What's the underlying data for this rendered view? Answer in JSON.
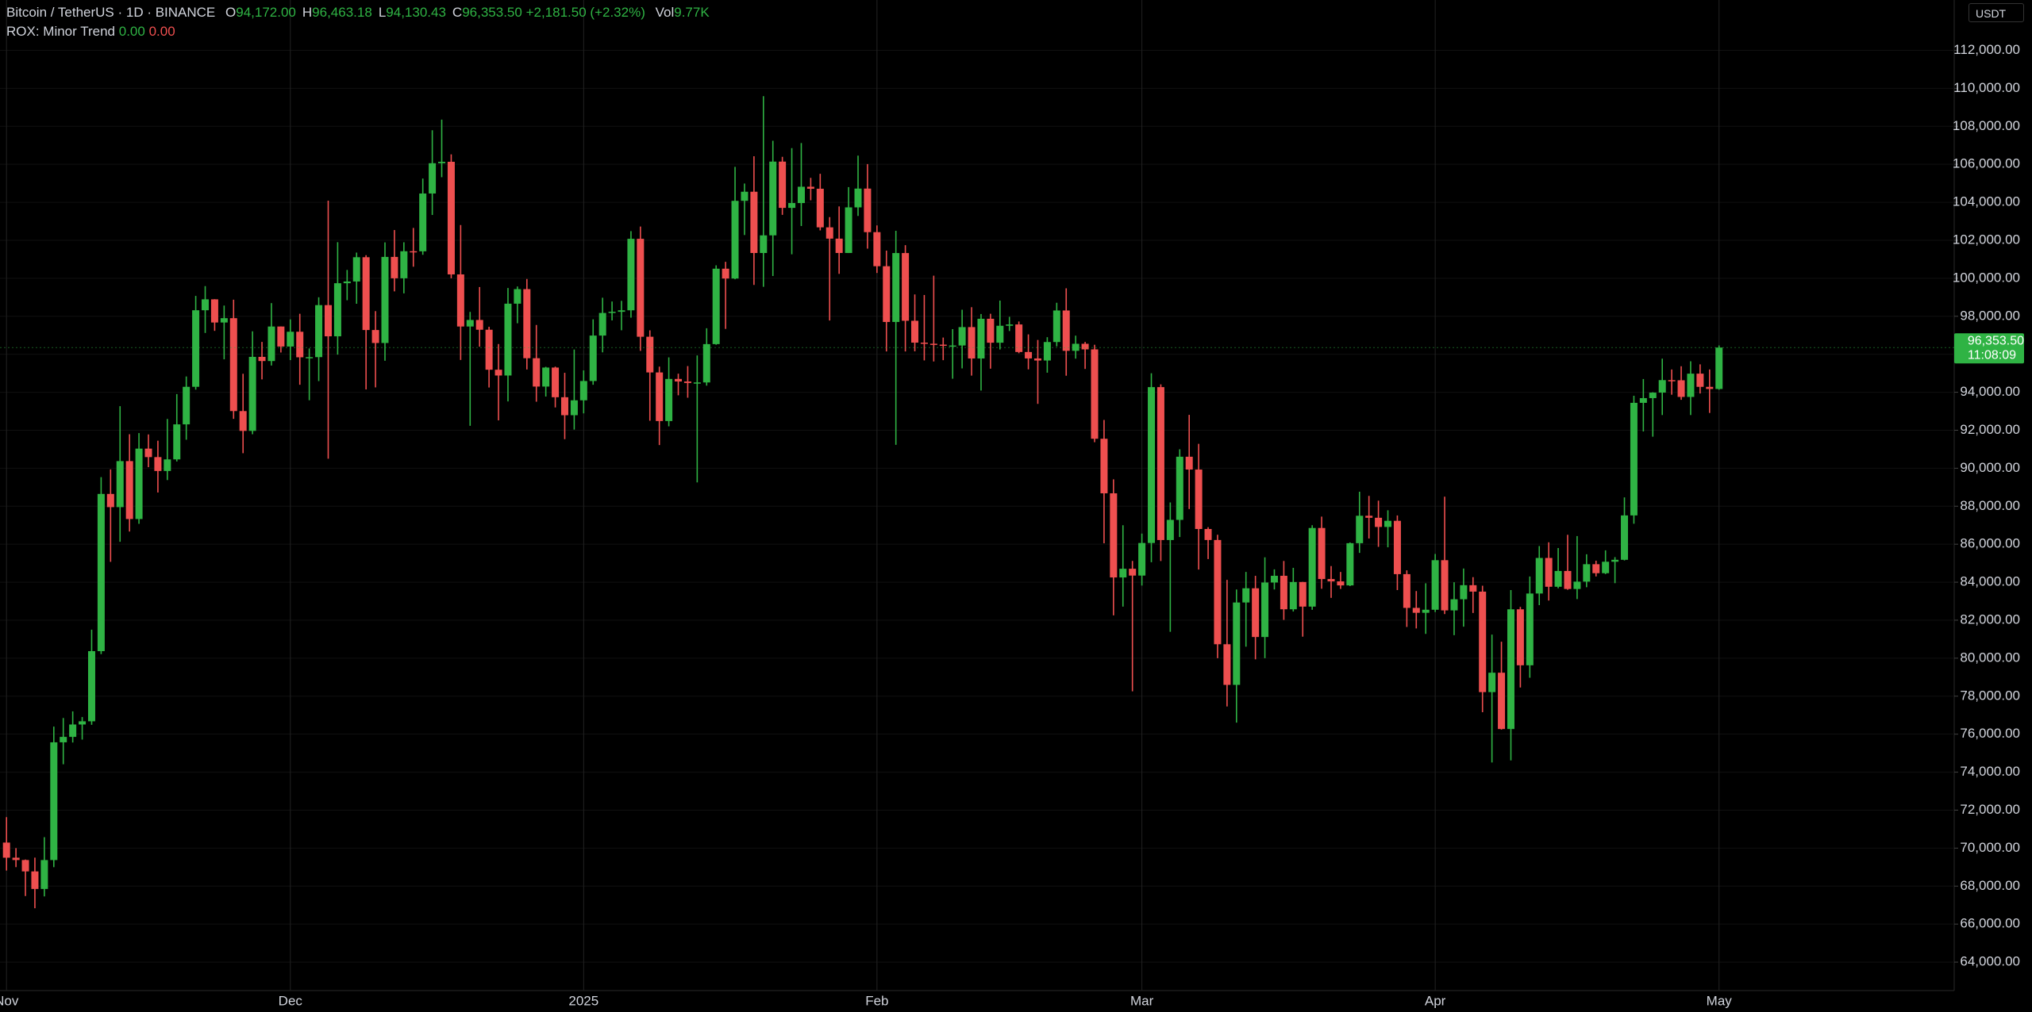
{
  "chart_data": {
    "type": "candlestick",
    "title": "Bitcoin / TetherUS · 1D · BINANCE",
    "header_fields": [
      {
        "key": "O",
        "value": "94,172.00"
      },
      {
        "key": "H",
        "value": "96,463.18"
      },
      {
        "key": "L",
        "value": "94,130.43"
      },
      {
        "key": "C",
        "value": "96,353.50"
      }
    ],
    "change": "+2,181.50 (+2.32%)",
    "volume": {
      "key": "Vol",
      "value": "9.77K"
    },
    "indicator": {
      "name": "ROX: Minor Trend",
      "values": [
        "0.00",
        "0.00"
      ]
    },
    "currency": "USDT",
    "last_price_label": "96,353.50",
    "countdown": "11:08:09",
    "up_color": "#2fb344",
    "down_color": "#ee4f4f",
    "grid": true,
    "categories": [
      "Nov",
      null,
      null,
      null,
      null,
      null,
      null,
      null,
      null,
      null,
      null,
      null,
      null,
      null,
      null,
      null,
      null,
      null,
      null,
      null,
      null,
      null,
      null,
      null,
      null,
      null,
      null,
      null,
      null,
      null,
      "Dec",
      null,
      null,
      null,
      null,
      null,
      null,
      null,
      null,
      null,
      null,
      null,
      null,
      null,
      null,
      null,
      null,
      null,
      null,
      null,
      null,
      null,
      null,
      null,
      null,
      null,
      null,
      null,
      null,
      null,
      null,
      "2025",
      null,
      null,
      null,
      null,
      null,
      null,
      null,
      null,
      null,
      null,
      null,
      null,
      null,
      null,
      null,
      null,
      null,
      null,
      null,
      null,
      null,
      null,
      null,
      null,
      null,
      null,
      null,
      null,
      null,
      null,
      "Feb",
      null,
      null,
      null,
      null,
      null,
      null,
      null,
      null,
      null,
      null,
      null,
      null,
      null,
      null,
      null,
      null,
      null,
      null,
      null,
      null,
      null,
      null,
      null,
      null,
      null,
      null,
      null,
      "Mar",
      null,
      null,
      null,
      null,
      null,
      null,
      null,
      null,
      null,
      null,
      null,
      null,
      null,
      null,
      null,
      null,
      null,
      null,
      null,
      null,
      null,
      null,
      null,
      null,
      null,
      null,
      null,
      null,
      null,
      null,
      "Apr",
      null,
      null,
      null,
      null,
      null,
      null,
      null,
      null,
      null,
      null,
      null,
      null,
      null,
      null,
      null,
      null,
      null,
      null,
      null,
      null,
      null,
      null,
      null,
      null,
      null,
      null,
      null,
      null,
      null,
      "May"
    ],
    "open": [
      70292,
      69496,
      69374,
      68775,
      67850,
      69372,
      75571,
      75857,
      76509,
      76677,
      80370,
      88647,
      87952,
      90375,
      87325,
      91032,
      90586,
      89855,
      90465,
      92310,
      94286,
      98317,
      98892,
      97672,
      97900,
      93010,
      91965,
      95863,
      95643,
      97461,
      96407,
      97185,
      95840,
      95849,
      98587,
      96945,
      99740,
      99831,
      101109,
      97276,
      96593,
      101125,
      100000,
      101424,
      101420,
      104463,
      106058,
      106133,
      100204,
      97461,
      97805,
      97291,
      95186,
      94881,
      98663,
      99429,
      95792,
      94299,
      95300,
      93738,
      92792,
      93576,
      94591,
      96984,
      98174,
      98236,
      98314,
      102078,
      96922,
      95043,
      92484,
      94701,
      94566,
      94488,
      94516,
      96534,
      100505,
      99987,
      104077,
      104556,
      101331,
      102260,
      106143,
      103706,
      103960,
      104819,
      104714,
      102682,
      102087,
      101332,
      103733,
      104722,
      102429,
      100635,
      97700,
      101328,
      97763,
      96612,
      96554,
      96506,
      96444,
      96462,
      97430,
      95778,
      97869,
      96608,
      97500,
      97569,
      96118,
      95780,
      95671,
      96644,
      98305,
      96181,
      96551,
      96258,
      91552,
      88680,
      84250,
      84708,
      84349,
      86064,
      94270,
      86220,
      87281,
      90606,
      89931,
      86801,
      86222,
      80734,
      78595,
      82932,
      83680,
      81115,
      83983,
      84338,
      82574,
      84010,
      82715,
      86854,
      84167,
      84043,
      83832,
      86054,
      87498,
      87392,
      86909,
      87232,
      84424,
      82648,
      82389,
      82550,
      85159,
      82516,
      83102,
      83843,
      83504,
      78214,
      79235,
      76271,
      82573,
      79626,
      83404,
      85276,
      83760,
      84591,
      83643,
      84030,
      84947,
      84474,
      85077,
      85179,
      87516,
      93442,
      93691,
      93980,
      94638,
      94630,
      93754,
      94979,
      94284,
      94172
    ],
    "high": [
      71632,
      70000,
      69400,
      69500,
      70577,
      76400,
      76850,
      77199,
      76900,
      81500,
      89530,
      89940,
      93265,
      91790,
      91850,
      91779,
      91449,
      92594,
      93905,
      94831,
      99073,
      99588,
      98900,
      98564,
      98871,
      94973,
      97208,
      96650,
      98693,
      97463,
      97836,
      98130,
      96305,
      99000,
      104088,
      101898,
      100439,
      101350,
      101215,
      98270,
      101888,
      102540,
      101895,
      102650,
      105250,
      107793,
      108353,
      106524,
      102800,
      98233,
      99540,
      97448,
      96538,
      99487,
      99569,
      99963,
      97544,
      95340,
      95350,
      95024,
      96250,
      95151,
      97839,
      98976,
      98778,
      98813,
      102482,
      102724,
      97258,
      95349,
      95836,
      94977,
      95378,
      95940,
      97371,
      100681,
      100866,
      105865,
      104988,
      106422,
      109588,
      107240,
      106394,
      106850,
      107120,
      105286,
      105500,
      103221,
      103783,
      104800,
      106457,
      106012,
      102783,
      101456,
      102500,
      101745,
      99149,
      99120,
      100137,
      96880,
      97323,
      98345,
      98478,
      98119,
      98132,
      98826,
      97972,
      97725,
      97046,
      96753,
      96899,
      98711,
      99475,
      96980,
      96650,
      96500,
      92540,
      89414,
      87000,
      85120,
      86558,
      95000,
      94416,
      88200,
      90998,
      92810,
      91283,
      86897,
      86500,
      84123,
      83617,
      84539,
      84336,
      85310,
      84676,
      85117,
      84756,
      84021,
      87000,
      87453,
      84850,
      84539,
      86094,
      88765,
      88543,
      88292,
      87786,
      87515,
      84624,
      83534,
      83943,
      85487,
      88500,
      83998,
      84720,
      84266,
      83817,
      81243,
      80867,
      83588,
      82700,
      84300,
      85905,
      86100,
      85799,
      86496,
      86429,
      85470,
      85132,
      85677,
      85320,
      88465,
      93817,
      94696,
      94000,
      95768,
      95199,
      95369,
      95630,
      95469,
      95200,
      96463.18
    ],
    "low": [
      68820,
      69000,
      67478,
      66835,
      67458,
      69000,
      74416,
      75560,
      75714,
      76492,
      80216,
      85072,
      86127,
      86668,
      87073,
      90056,
      88722,
      89376,
      90357,
      91500,
      94138,
      97122,
      97232,
      95734,
      92600,
      90791,
      91792,
      94677,
      95407,
      96092,
      95693,
      94395,
      93578,
      94587,
      90500,
      95981,
      98844,
      98657,
      94150,
      94256,
      95658,
      99311,
      99205,
      100609,
      101237,
      103333,
      105321,
      100000,
      95700,
      92232,
      96398,
      94250,
      92520,
      93515,
      97632,
      95199,
      93500,
      93774,
      93200,
      91530,
      92033,
      92888,
      94392,
      96100,
      97781,
      97263,
      97926,
      96181,
      92500,
      91220,
      92206,
      93840,
      93712,
      89256,
      94346,
      96500,
      97335,
      99950,
      102277,
      99651,
      99550,
      100119,
      103339,
      101262,
      102750,
      104106,
      102520,
      97777,
      100233,
      101328,
      103282,
      101560,
      100279,
      96150,
      91231,
      96150,
      96155,
      95676,
      95620,
      95688,
      94713,
      95256,
      94876,
      94088,
      95242,
      96252,
      97223,
      96055,
      95205,
      93388,
      95029,
      96415,
      94871,
      95770,
      95227,
      91370,
      86050,
      82256,
      82716,
      78258,
      83824,
      85050,
      85117,
      81390,
      86379,
      87852,
      84667,
      85218,
      80000,
      77459,
      76606,
      80607,
      79939,
      80000,
      83618,
      82017,
      82456,
      81134,
      82547,
      83655,
      83175,
      83646,
      83794,
      85541,
      86300,
      85861,
      85837,
      83585,
      81644,
      81565,
      81279,
      82429,
      82320,
      81211,
      81659,
      82379,
      77153,
      74508,
      76239,
      74620,
      78456,
      78971,
      82792,
      83034,
      83678,
      83600,
      83111,
      83736,
      84303,
      84426,
      83949,
      85144,
      87076,
      91935,
      91660,
      92800,
      93870,
      93602,
      92800,
      93935,
      92910,
      94130.43
    ],
    "close": [
      69496,
      69374,
      68775,
      67850,
      69372,
      75571,
      75857,
      76509,
      76677,
      80370,
      88647,
      87952,
      90375,
      87325,
      91032,
      90586,
      89855,
      90465,
      92310,
      94286,
      98317,
      98892,
      97672,
      97900,
      93010,
      91965,
      95863,
      95643,
      97461,
      96407,
      97185,
      95840,
      95849,
      98587,
      96945,
      99740,
      99831,
      101109,
      97276,
      96593,
      101125,
      100000,
      101424,
      101420,
      104463,
      106058,
      106133,
      100204,
      97461,
      97805,
      97291,
      95186,
      94881,
      98663,
      99429,
      95792,
      94299,
      95300,
      93738,
      92792,
      93576,
      94591,
      96984,
      98174,
      98236,
      98314,
      102078,
      96922,
      95043,
      92484,
      94701,
      94566,
      94488,
      94516,
      96534,
      100505,
      99987,
      104077,
      104556,
      101331,
      102260,
      106143,
      103706,
      103960,
      104819,
      104714,
      102682,
      102087,
      101332,
      103733,
      104722,
      102429,
      100635,
      97700,
      101328,
      97763,
      96612,
      96554,
      96506,
      96444,
      96462,
      97430,
      95778,
      97869,
      96608,
      97500,
      97569,
      96118,
      95780,
      95671,
      96644,
      98305,
      96181,
      96551,
      96258,
      91552,
      88680,
      84250,
      84708,
      84349,
      86064,
      94270,
      86220,
      87281,
      90606,
      89931,
      86801,
      86222,
      80734,
      78595,
      82932,
      83680,
      81115,
      83983,
      84338,
      82574,
      84010,
      82715,
      86854,
      84167,
      84043,
      83832,
      86054,
      87498,
      87392,
      86909,
      87232,
      84424,
      82648,
      82389,
      82550,
      85159,
      82516,
      83102,
      83843,
      83504,
      78214,
      79235,
      76271,
      82573,
      79626,
      83404,
      85276,
      83760,
      84591,
      83643,
      84030,
      84947,
      84474,
      85077,
      85179,
      87516,
      93442,
      93691,
      93980,
      94638,
      94630,
      93754,
      94979,
      94284,
      94172,
      96353.5
    ],
    "ylim": [
      62500,
      114650
    ],
    "yticks": [
      {
        "value": 64000,
        "label": "64,000.00"
      },
      {
        "value": 66000,
        "label": "66,000.00"
      },
      {
        "value": 68000,
        "label": "68,000.00"
      },
      {
        "value": 70000,
        "label": "70,000.00"
      },
      {
        "value": 72000,
        "label": "72,000.00"
      },
      {
        "value": 74000,
        "label": "74,000.00"
      },
      {
        "value": 76000,
        "label": "76,000.00"
      },
      {
        "value": 78000,
        "label": "78,000.00"
      },
      {
        "value": 80000,
        "label": "80,000.00"
      },
      {
        "value": 82000,
        "label": "82,000.00"
      },
      {
        "value": 84000,
        "label": "84,000.00"
      },
      {
        "value": 86000,
        "label": "86,000.00"
      },
      {
        "value": 88000,
        "label": "88,000.00"
      },
      {
        "value": 90000,
        "label": "90,000.00"
      },
      {
        "value": 92000,
        "label": "92,000.00"
      },
      {
        "value": 94000,
        "label": "94,000.00"
      },
      {
        "value": 96000,
        "label": "96,000.00"
      },
      {
        "value": 98000,
        "label": "98,000.00"
      },
      {
        "value": 100000,
        "label": "100,000.00"
      },
      {
        "value": 102000,
        "label": "102,000.00"
      },
      {
        "value": 104000,
        "label": "104,000.00"
      },
      {
        "value": 106000,
        "label": "106,000.00"
      },
      {
        "value": 108000,
        "label": "108,000.00"
      },
      {
        "value": 110000,
        "label": "110,000.00"
      },
      {
        "value": 112000,
        "label": "112,000.00"
      }
    ]
  }
}
